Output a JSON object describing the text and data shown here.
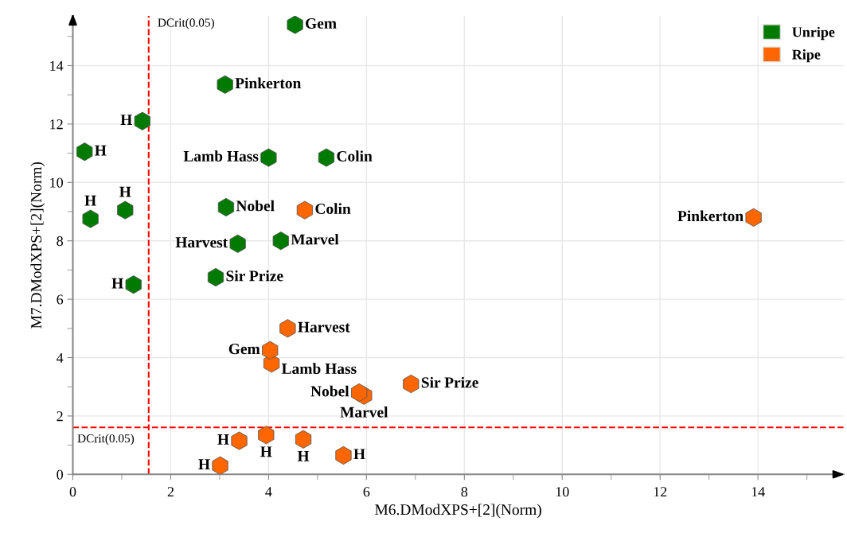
{
  "chart_data": {
    "type": "scatter",
    "xlabel": "M6.DModXPS+[2](Norm)",
    "ylabel": "M7.DModXPS+[2](Norm)",
    "series": [
      {
        "name": "Unripe",
        "color": "#007a00",
        "x": [
          4.54,
          3.11,
          1.42,
          0.24,
          4.0,
          5.18,
          0.36,
          1.07,
          3.13,
          3.37,
          4.25,
          2.92,
          1.24
        ],
        "values": [
          15.4,
          13.35,
          12.1,
          11.05,
          10.85,
          10.85,
          8.75,
          9.05,
          9.15,
          7.9,
          8.0,
          6.75,
          6.5
        ]
      },
      {
        "name": "Ripe",
        "color": "#ff6600",
        "x": [
          4.74,
          13.91,
          4.39,
          4.03,
          4.06,
          5.85,
          5.95,
          6.91,
          3.4,
          3.95,
          4.71,
          5.53,
          3.01
        ],
        "values": [
          9.05,
          8.8,
          5.0,
          4.25,
          3.8,
          2.8,
          2.7,
          3.1,
          1.15,
          1.35,
          1.2,
          0.65,
          0.3
        ]
      }
    ],
    "annotations": [
      {
        "text": "Gem",
        "x": 4.54,
        "y": 15.4
      },
      {
        "text": "Pinkerton",
        "x": 3.11,
        "y": 13.35
      },
      {
        "text": "H",
        "x": 1.42,
        "y": 12.1
      },
      {
        "text": "H",
        "x": 0.24,
        "y": 11.05
      },
      {
        "text": "Lamb Hass",
        "x": 4.0,
        "y": 10.85
      },
      {
        "text": "Colin",
        "x": 5.18,
        "y": 10.85
      },
      {
        "text": "H",
        "x": 0.36,
        "y": 8.75
      },
      {
        "text": "H",
        "x": 1.07,
        "y": 9.05
      },
      {
        "text": "Nobel",
        "x": 3.13,
        "y": 9.15
      },
      {
        "text": "Harvest",
        "x": 3.37,
        "y": 7.9
      },
      {
        "text": "Marvel",
        "x": 4.25,
        "y": 8.0
      },
      {
        "text": "Sir Prize",
        "x": 2.92,
        "y": 6.75
      },
      {
        "text": "H",
        "x": 1.24,
        "y": 6.5
      },
      {
        "text": "Colin",
        "x": 4.74,
        "y": 9.05
      },
      {
        "text": "Pinkerton",
        "x": 13.91,
        "y": 8.8
      },
      {
        "text": "Harvest",
        "x": 4.39,
        "y": 5.0
      },
      {
        "text": "Gem",
        "x": 4.03,
        "y": 4.25
      },
      {
        "text": "Lamb Hass",
        "x": 4.06,
        "y": 3.8
      },
      {
        "text": "Nobel",
        "x": 5.85,
        "y": 2.8
      },
      {
        "text": "Marvel",
        "x": 5.95,
        "y": 2.7
      },
      {
        "text": "Sir Prize",
        "x": 6.91,
        "y": 3.1
      },
      {
        "text": "H",
        "x": 3.4,
        "y": 1.15
      },
      {
        "text": "H",
        "x": 3.95,
        "y": 1.35
      },
      {
        "text": "H",
        "x": 4.71,
        "y": 1.2
      },
      {
        "text": "H",
        "x": 5.53,
        "y": 0.65
      },
      {
        "text": "H",
        "x": 3.01,
        "y": 0.3
      }
    ],
    "ref_lines": [
      {
        "axis": "x",
        "value": 1.55,
        "label": "DCrit(0.05)",
        "color": "#ff0000",
        "line_style": "dashed"
      },
      {
        "axis": "y",
        "value": 1.61,
        "label": "DCrit(0.05)",
        "color": "#ff0000",
        "line_style": "dashed"
      }
    ],
    "xlim": [
      0,
      15.75
    ],
    "ylim": [
      0,
      15.7
    ],
    "xticks": [
      0,
      {
        "value": 1,
        "label": null
      },
      2,
      {
        "value": 3,
        "label": null
      },
      4,
      {
        "value": 5,
        "label": null
      },
      6,
      {
        "value": 7,
        "label": null
      },
      8,
      {
        "value": 9,
        "label": null
      },
      10,
      {
        "value": 11,
        "label": null
      },
      12,
      {
        "value": 13,
        "label": null
      },
      14,
      {
        "value": 15,
        "label": null
      }
    ],
    "yticks": [
      0,
      {
        "value": 1,
        "label": null
      },
      2,
      {
        "value": 3,
        "label": null
      },
      4,
      {
        "value": 5,
        "label": null
      },
      6,
      {
        "value": 7,
        "label": null
      },
      8,
      {
        "value": 9,
        "label": null
      },
      10,
      {
        "value": 11,
        "label": null
      },
      12,
      {
        "value": 13,
        "label": null
      },
      14,
      {
        "value": 15,
        "label": null
      }
    ],
    "grid": true,
    "legend": "top right"
  }
}
